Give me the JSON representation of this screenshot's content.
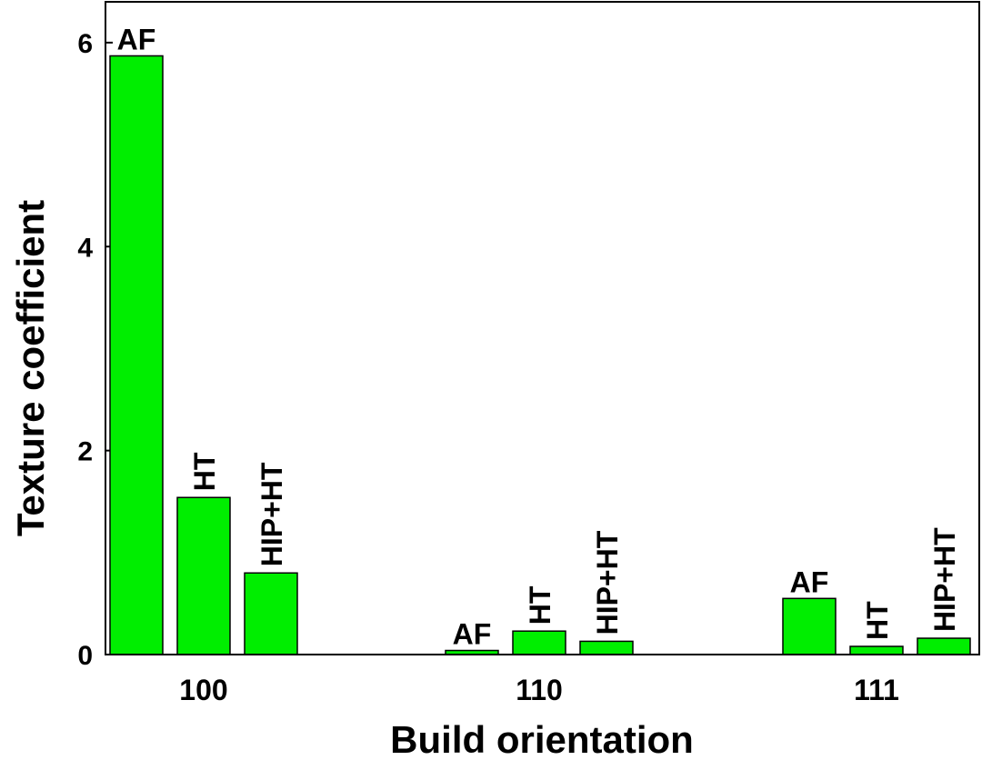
{
  "chart_data": {
    "type": "bar",
    "title": "",
    "xlabel": "Build orientation",
    "ylabel": "Texture coefficient",
    "ylim": [
      0,
      6.4
    ],
    "yticks": [
      0,
      2,
      4,
      6
    ],
    "ytick_labels": [
      "0",
      "2",
      "4",
      "6"
    ],
    "grid": false,
    "legend": "none",
    "bar_color": "#00ee00",
    "categories": [
      "100",
      "110",
      "111"
    ],
    "series": [
      {
        "name": "AF",
        "values": [
          5.87,
          0.04,
          0.55
        ]
      },
      {
        "name": "HT",
        "values": [
          1.54,
          0.23,
          0.08
        ]
      },
      {
        "name": "HIP+HT",
        "values": [
          0.8,
          0.13,
          0.16
        ]
      }
    ]
  }
}
